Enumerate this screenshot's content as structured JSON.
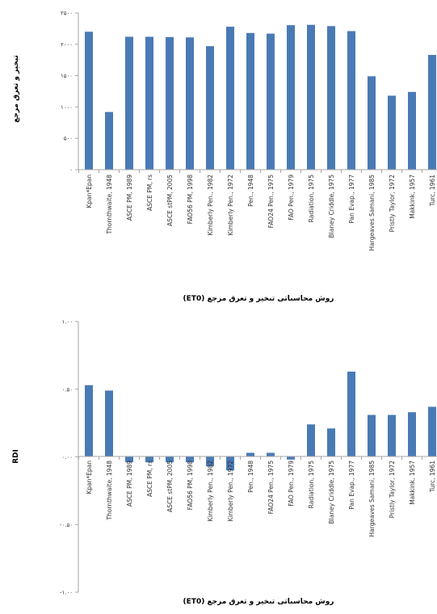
{
  "colors": {
    "bar": "#4a7ab5",
    "axis": "#a6a6a6",
    "text": "#333333"
  },
  "chart_data": [
    {
      "type": "bar",
      "title": "",
      "ylabel": "تبخیر و تعرق مرجع",
      "xlabel": "روش محاسباتی تبخیر و تعرق مرجع (ET0)",
      "ylim": [
        0,
        2500
      ],
      "yticks": [
        0,
        500,
        1000,
        1500,
        2000,
        2500
      ],
      "ytick_labels": [
        "۰",
        "۵۰۰",
        "۱۰۰۰",
        "۱۵۰۰",
        "۲۰۰۰",
        "۲۵۰۰"
      ],
      "grid": false,
      "categories": [
        "Kpan*Epan",
        "Thornthwaite, 1948",
        "ASCE PM, 1989",
        "ASCE PM, rs",
        "ASCE stPM, 2005",
        "FAO56 PM, 1998",
        "Kimberly Pen., 1982",
        "Kimberly Pen., 1972",
        "Pen., 1948",
        "FAO24 Pen., 1975",
        "FAO Pen., 1979",
        "Radiation, 1975",
        "Blaney Criddle, 1975",
        "Pan Evap., 1977",
        "Hargeaves Samani, 1985",
        "Pristly Taylor, 1972",
        "Makkink, 1957",
        "Turc, 1961"
      ],
      "values": [
        2200,
        920,
        2120,
        2120,
        2115,
        2110,
        1970,
        2280,
        2180,
        2170,
        2305,
        2310,
        2290,
        2210,
        1490,
        1180,
        1240,
        1830
      ]
    },
    {
      "type": "bar",
      "title": "",
      "ylabel": "RDI",
      "xlabel": "روش محاسباتی تبخیر و تعرق مرجع (ET0)",
      "ylim": [
        -1.0,
        1.0
      ],
      "yticks": [
        -1.0,
        -0.5,
        0.0,
        0.5,
        1.0
      ],
      "ytick_labels": [
        "-۱.۰۰",
        "-۰.۵۰",
        "۰.۰۰",
        "۰.۵۰",
        "۱.۰۰"
      ],
      "grid": false,
      "categories": [
        "Kpan*Epan",
        "Thornthwaite, 1948",
        "ASCE PM, 1989",
        "ASCE PM, rs",
        "ASCE stPM, 2005",
        "FAO56 PM, 1998",
        "Kimberly Pen., 1982",
        "Kimberly Pen., 1972",
        "Pen., 1948",
        "FAO24 Pen., 1975",
        "FAO Pen., 1979",
        "Radiation, 1975",
        "Blaney Criddle, 1975",
        "Pan Evap., 1977",
        "Hargeaves Samani, 1985",
        "Pristly Taylor, 1972",
        "Makkink, 1957",
        "Turc, 1961"
      ],
      "values": [
        0.53,
        0.49,
        -0.04,
        -0.04,
        -0.04,
        -0.04,
        -0.07,
        -0.1,
        0.03,
        0.03,
        -0.02,
        0.24,
        0.21,
        0.63,
        0.31,
        0.31,
        0.33,
        0.37
      ]
    }
  ]
}
